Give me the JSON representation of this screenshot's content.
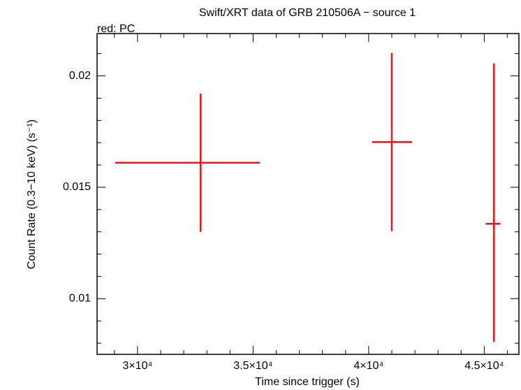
{
  "chart_data": {
    "type": "errorbar",
    "title": "Swift/XRT data of GRB 210506A − source 1",
    "subtitle": "red: PC",
    "xlabel": "Time since trigger (s)",
    "ylabel": "Count Rate (0.3−10 keV) (s⁻¹)",
    "xlim": [
      28250,
      46500
    ],
    "ylim": [
      0.0075,
      0.0219
    ],
    "xticks": [
      {
        "value": 30000,
        "label": "3×10⁴"
      },
      {
        "value": 35000,
        "label": "3.5×10⁴"
      },
      {
        "value": 40000,
        "label": "4×10⁴"
      },
      {
        "value": 45000,
        "label": "4.5×10⁴"
      }
    ],
    "xminorticks": [
      29000,
      31000,
      32000,
      33000,
      34000,
      36000,
      37000,
      38000,
      39000,
      41000,
      42000,
      43000,
      44000,
      46000
    ],
    "yticks": [
      0.01,
      0.015,
      0.02
    ],
    "yminorticks": [
      0.008,
      0.009,
      0.011,
      0.012,
      0.013,
      0.014,
      0.016,
      0.017,
      0.018,
      0.019,
      0.021
    ],
    "series": [
      {
        "name": "PC",
        "color": "#e8141a",
        "x": [
          32730,
          41000,
          45420
        ],
        "xerr_low": [
          3700,
          850,
          360
        ],
        "xerr_high": [
          2570,
          880,
          280
        ],
        "values": [
          0.0161,
          0.01703,
          0.01336
        ],
        "yerr_low": [
          0.0031,
          0.004,
          0.0053
        ],
        "yerr_high": [
          0.0031,
          0.004,
          0.0072
        ]
      }
    ]
  }
}
